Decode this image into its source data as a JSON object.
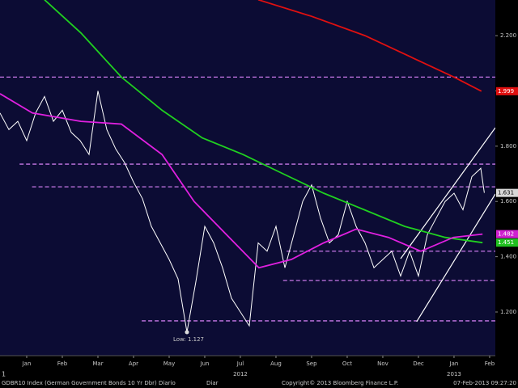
{
  "chart_data": {
    "type": "line",
    "xlim": [
      -0.75,
      13.16
    ],
    "xticks": [
      {
        "value": 0,
        "label": "Jan"
      },
      {
        "value": 1,
        "label": "Feb"
      },
      {
        "value": 2,
        "label": "Mar"
      },
      {
        "value": 3,
        "label": "Apr"
      },
      {
        "value": 4,
        "label": "May"
      },
      {
        "value": 5,
        "label": "Jun"
      },
      {
        "value": 6,
        "label": "Jul"
      },
      {
        "value": 7,
        "label": "Aug"
      },
      {
        "value": 8,
        "label": "Sep"
      },
      {
        "value": 9,
        "label": "Oct"
      },
      {
        "value": 10,
        "label": "Nov"
      },
      {
        "value": 11,
        "label": "Dec"
      },
      {
        "value": 12,
        "label": "Jan"
      },
      {
        "value": 13,
        "label": "Feb"
      }
    ],
    "year_labels": [
      {
        "value": 6,
        "label": "2012"
      },
      {
        "value": 12,
        "label": "2013"
      }
    ],
    "ylim": [
      1.042,
      2.329
    ],
    "yticks": [
      {
        "value": 1.2,
        "label": "1.200"
      },
      {
        "value": 1.4,
        "label": "1.400"
      },
      {
        "value": 1.6,
        "label": "1.600"
      },
      {
        "value": 1.8,
        "label": "1.800"
      },
      {
        "value": 2,
        "label": "2.000"
      },
      {
        "value": 2.2,
        "label": "2.200"
      }
    ],
    "series": [
      {
        "color": "#ffffff",
        "label_color": "#d8d8d8",
        "x": [
          -0.75,
          -0.5,
          -0.25,
          0,
          0.25,
          0.5,
          0.75,
          1,
          1.25,
          1.5,
          1.75,
          2,
          2.25,
          2.5,
          2.75,
          3,
          3.25,
          3.5,
          3.75,
          4,
          4.25,
          4.5,
          4.75,
          5,
          5.25,
          5.5,
          5.75,
          6,
          6.25,
          6.5,
          6.75,
          7,
          7.25,
          7.5,
          7.75,
          8,
          8.25,
          8.5,
          8.75,
          9,
          9.25,
          9.5,
          9.75,
          10,
          10.25,
          10.5,
          10.75,
          11,
          11.25,
          11.5,
          11.75,
          12,
          12.25,
          12.5,
          12.75,
          12.85
        ],
        "values": [
          1.92,
          1.86,
          1.89,
          1.82,
          1.92,
          1.98,
          1.89,
          1.93,
          1.85,
          1.82,
          1.77,
          2.0,
          1.86,
          1.79,
          1.74,
          1.67,
          1.61,
          1.51,
          1.45,
          1.39,
          1.32,
          1.127,
          1.31,
          1.51,
          1.45,
          1.36,
          1.25,
          1.2,
          1.15,
          1.45,
          1.42,
          1.51,
          1.36,
          1.48,
          1.6,
          1.66,
          1.54,
          1.45,
          1.48,
          1.6,
          1.51,
          1.45,
          1.36,
          1.39,
          1.42,
          1.33,
          1.42,
          1.33,
          1.48,
          1.54,
          1.6,
          1.63,
          1.57,
          1.69,
          1.72,
          1.631
        ]
      },
      {
        "color": "#e01010",
        "label_color": "#e01010",
        "x": [
          6.5,
          8,
          9.5,
          11,
          12,
          12.77
        ],
        "values": [
          2.33,
          2.27,
          2.2,
          2.11,
          2.05,
          1.999
        ]
      },
      {
        "color": "#20d020",
        "label_color": "#20c020",
        "x": [
          0.5,
          1.52,
          2.66,
          3.8,
          4.93,
          6.07,
          7.2,
          8.34,
          9.48,
          10.61,
          11.75,
          12.8
        ],
        "values": [
          2.33,
          2.21,
          2.05,
          1.93,
          1.83,
          1.77,
          1.7,
          1.63,
          1.57,
          1.51,
          1.47,
          1.451
        ]
      },
      {
        "color": "#e020e0",
        "label_color": "#d020d0",
        "x": [
          -0.75,
          0.16,
          1.52,
          2.66,
          3.8,
          4.7,
          5.61,
          6.52,
          7.43,
          8.34,
          9.25,
          10.16,
          11.07,
          11.98,
          12.8
        ],
        "values": [
          1.99,
          1.92,
          1.89,
          1.88,
          1.77,
          1.6,
          1.48,
          1.36,
          1.39,
          1.45,
          1.5,
          1.47,
          1.42,
          1.47,
          1.482
        ]
      }
    ],
    "levels": [
      {
        "value": 2.05,
        "from": -0.75
      },
      {
        "value": 1.735,
        "from": -0.2
      },
      {
        "value": 1.653,
        "from": 0.15
      },
      {
        "value": 1.42,
        "from": 7.3
      },
      {
        "value": 1.314,
        "from": 7.2
      },
      {
        "value": 1.168,
        "from": 3.23
      }
    ],
    "level_color": "#c878e8",
    "trendlines": [
      {
        "x": [
          10.5,
          13.16
        ],
        "values": [
          1.393,
          1.867
        ]
      },
      {
        "x": [
          10.95,
          13.16
        ],
        "values": [
          1.165,
          1.627
        ]
      }
    ],
    "annotation": {
      "text": "Low: 1.127",
      "x": 4.5,
      "y": 1.127
    },
    "footer": {
      "left": "GDBR10 Index (German Government Bonds 10 Yr Dbr) Diario",
      "page": "1",
      "mid": "Diar",
      "copyright": "Copyright© 2013 Bloomberg Finance L.P.",
      "timestamp": "07-Feb-2013 09:27:20"
    }
  }
}
